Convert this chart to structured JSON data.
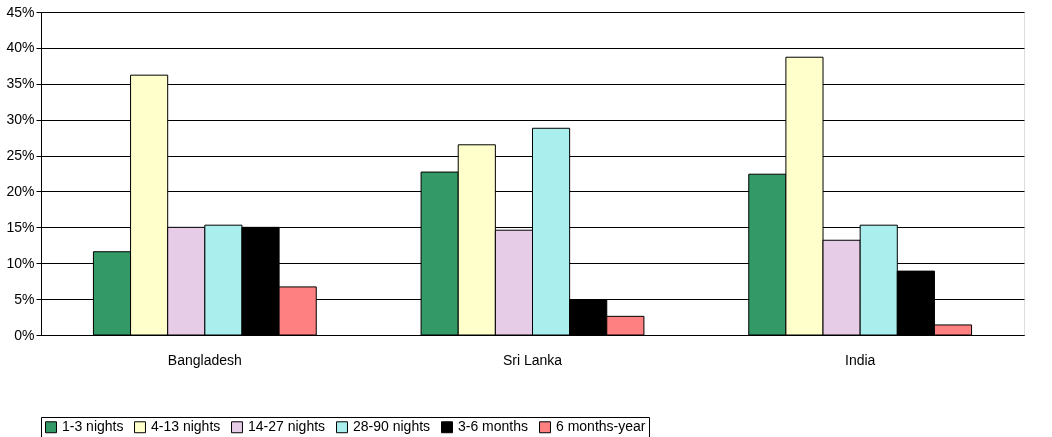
{
  "chart_data": {
    "type": "bar",
    "categories": [
      "Bangladesh",
      "Sri Lanka",
      "India"
    ],
    "series": [
      {
        "name": "1-3 nights",
        "color": "#339966",
        "values": [
          11.6,
          22.7,
          22.4
        ]
      },
      {
        "name": "4-13 nights",
        "color": "#ffffcc",
        "values": [
          36.2,
          26.5,
          38.7
        ]
      },
      {
        "name": "14-27 nights",
        "color": "#e6cce6",
        "values": [
          15.0,
          14.6,
          13.2
        ]
      },
      {
        "name": "28-90 nights",
        "color": "#aaeeee",
        "values": [
          15.3,
          28.8,
          15.3
        ]
      },
      {
        "name": "3-6 months",
        "color": "#000000",
        "values": [
          15.0,
          4.9,
          8.9
        ]
      },
      {
        "name": "6 months-year",
        "color": "#ff8080",
        "values": [
          6.7,
          2.6,
          1.4
        ]
      }
    ],
    "ylim": [
      0,
      45
    ],
    "yticks": [
      {
        "value": 0,
        "label": "0%"
      },
      {
        "value": 5,
        "label": "5%"
      },
      {
        "value": 10,
        "label": "10%"
      },
      {
        "value": 15,
        "label": "15%"
      },
      {
        "value": 20,
        "label": "20%"
      },
      {
        "value": 25,
        "label": "25%"
      },
      {
        "value": 30,
        "label": "30%"
      },
      {
        "value": 35,
        "label": "35%"
      },
      {
        "value": 40,
        "label": "40%"
      },
      {
        "value": 45,
        "label": "45%"
      }
    ],
    "grid": "y",
    "legend": "bottom"
  }
}
